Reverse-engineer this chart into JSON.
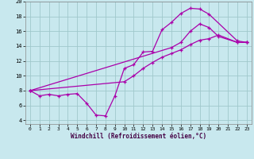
{
  "background_color": "#c8e8ee",
  "grid_color": "#a0c8cc",
  "line_color": "#aa00aa",
  "xlabel": "Windchill (Refroidissement éolien,°C)",
  "xlim": [
    -0.5,
    23.5
  ],
  "ylim": [
    3.5,
    20.0
  ],
  "yticks": [
    4,
    6,
    8,
    10,
    12,
    14,
    16,
    18,
    20
  ],
  "xticks": [
    0,
    1,
    2,
    3,
    4,
    5,
    6,
    7,
    8,
    9,
    10,
    11,
    12,
    13,
    14,
    15,
    16,
    17,
    18,
    19,
    20,
    21,
    22,
    23
  ],
  "series1_x": [
    0,
    1,
    2,
    3,
    4,
    5,
    6,
    7,
    8,
    9,
    10,
    11,
    12,
    13,
    14,
    15,
    16,
    17,
    18,
    19,
    22,
    23
  ],
  "series1_y": [
    8.0,
    7.3,
    7.5,
    7.3,
    7.5,
    7.6,
    6.3,
    4.7,
    4.6,
    7.3,
    11.0,
    11.5,
    13.2,
    13.3,
    16.2,
    17.2,
    18.4,
    19.1,
    19.0,
    18.3,
    14.7,
    14.5
  ],
  "series2_x": [
    0,
    15,
    16,
    17,
    18,
    19,
    20,
    22,
    23
  ],
  "series2_y": [
    8.0,
    13.8,
    14.5,
    16.0,
    17.0,
    16.5,
    15.3,
    14.5,
    14.5
  ],
  "series3_x": [
    0,
    10,
    11,
    12,
    13,
    14,
    15,
    16,
    17,
    18,
    19,
    20,
    22,
    23
  ],
  "series3_y": [
    8.0,
    9.2,
    10.0,
    11.0,
    11.8,
    12.5,
    13.0,
    13.5,
    14.2,
    14.8,
    15.0,
    15.5,
    14.5,
    14.5
  ]
}
